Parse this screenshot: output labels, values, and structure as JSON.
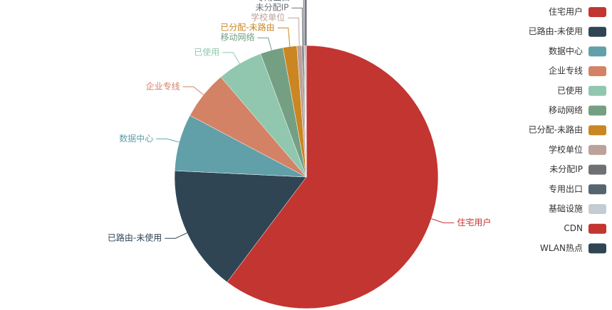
{
  "chart_data": {
    "type": "pie",
    "categories": [
      "住宅用户",
      "已路由-未使用",
      "数据中心",
      "企业专线",
      "已使用",
      "移动网络",
      "已分配-未路由",
      "学校单位",
      "未分配IP",
      "专用出口",
      "基础设施",
      "CDN",
      "WLAN热点"
    ],
    "values": [
      60.3,
      15.5,
      7,
      6,
      5.6,
      2.8,
      1.7,
      0.6,
      0.2,
      0.1,
      0.1,
      0.1,
      0.05
    ],
    "colors": [
      "#c23531",
      "#2f4554",
      "#61a0a8",
      "#d48265",
      "#91c7ae",
      "#749f83",
      "#ca8622",
      "#bda29a",
      "#6e7074",
      "#546570",
      "#c4ccd3",
      "#c23531",
      "#2f4554"
    ],
    "legend": "right"
  }
}
